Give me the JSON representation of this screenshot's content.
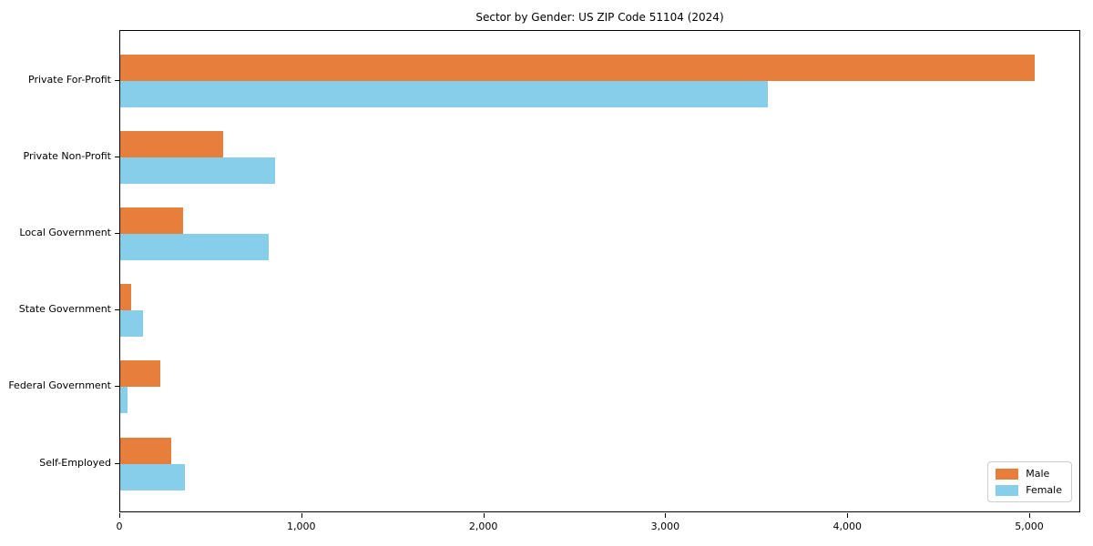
{
  "chart_data": {
    "type": "bar",
    "orientation": "horizontal",
    "title": "Sector by Gender: US ZIP Code 51104 (2024)",
    "categories": [
      "Private For-Profit",
      "Private Non-Profit",
      "Local Government",
      "State Government",
      "Federal Government",
      "Self-Employed"
    ],
    "series": [
      {
        "name": "Male",
        "color": "#e87e3c",
        "values": [
          5025,
          565,
          345,
          60,
          220,
          280
        ]
      },
      {
        "name": "Female",
        "color": "#87ceeb",
        "values": [
          3560,
          850,
          815,
          125,
          40,
          355
        ]
      }
    ],
    "xlabel": "",
    "ylabel": "",
    "x_ticks": [
      0,
      1000,
      2000,
      3000,
      4000,
      5000
    ],
    "x_tick_labels": [
      "0",
      "1,000",
      "2,000",
      "3,000",
      "4,000",
      "5,000"
    ],
    "xlim": [
      0,
      5280
    ],
    "grid": false,
    "legend_position": "lower right",
    "legend_title": ""
  },
  "colors": {
    "male": "#e87e3c",
    "female": "#87ceeb",
    "spine": "#000000",
    "legend_border": "#cccccc",
    "background": "#ffffff"
  }
}
